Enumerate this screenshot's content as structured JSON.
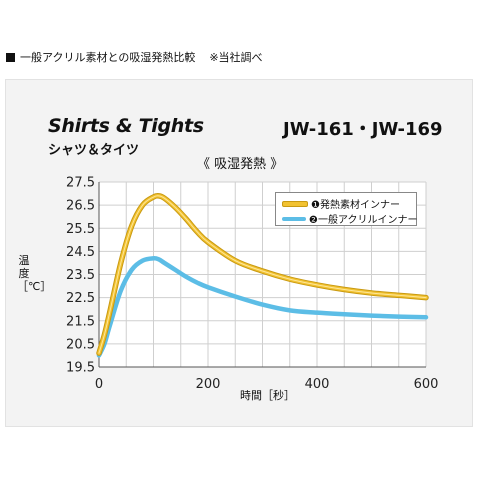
{
  "header": {
    "title": "一般アクリル素材との吸湿発熱比較",
    "note": "※当社調べ"
  },
  "product": {
    "title_en": "Shirts & Tights",
    "title_jp": "シャツ＆タイツ",
    "model": "JW-161・JW-169"
  },
  "chart_data": {
    "type": "line",
    "subtitle": "《 吸湿発熱 》",
    "xlabel": "時間［秒］",
    "ylabel": "温度［℃］",
    "xlim": [
      0,
      600
    ],
    "ylim": [
      19.5,
      27.5
    ],
    "x_ticks": [
      0,
      200,
      400,
      600
    ],
    "y_ticks": [
      19.5,
      20.5,
      21.5,
      22.5,
      23.5,
      24.5,
      25.5,
      26.5,
      27.5
    ],
    "grid": true,
    "legend_position": "top-right",
    "series": [
      {
        "name": "❶発熱素材インナー",
        "color": "#f2c231",
        "x": [
          0,
          10,
          20,
          40,
          60,
          80,
          100,
          110,
          120,
          140,
          160,
          180,
          200,
          250,
          300,
          350,
          400,
          450,
          500,
          550,
          600
        ],
        "y": [
          20.1,
          20.9,
          21.9,
          24.0,
          25.6,
          26.5,
          26.85,
          26.9,
          26.8,
          26.4,
          25.9,
          25.35,
          24.9,
          24.1,
          23.65,
          23.3,
          23.05,
          22.85,
          22.7,
          22.6,
          22.5
        ]
      },
      {
        "name": "❷一般アクリルインナー",
        "color": "#5cbde6",
        "x": [
          0,
          10,
          20,
          40,
          60,
          80,
          100,
          110,
          120,
          140,
          160,
          180,
          200,
          250,
          300,
          350,
          400,
          450,
          500,
          550,
          600
        ],
        "y": [
          20.0,
          20.5,
          21.3,
          22.8,
          23.7,
          24.1,
          24.2,
          24.15,
          24.0,
          23.7,
          23.4,
          23.15,
          22.95,
          22.55,
          22.2,
          21.95,
          21.85,
          21.78,
          21.72,
          21.68,
          21.65
        ]
      }
    ]
  }
}
